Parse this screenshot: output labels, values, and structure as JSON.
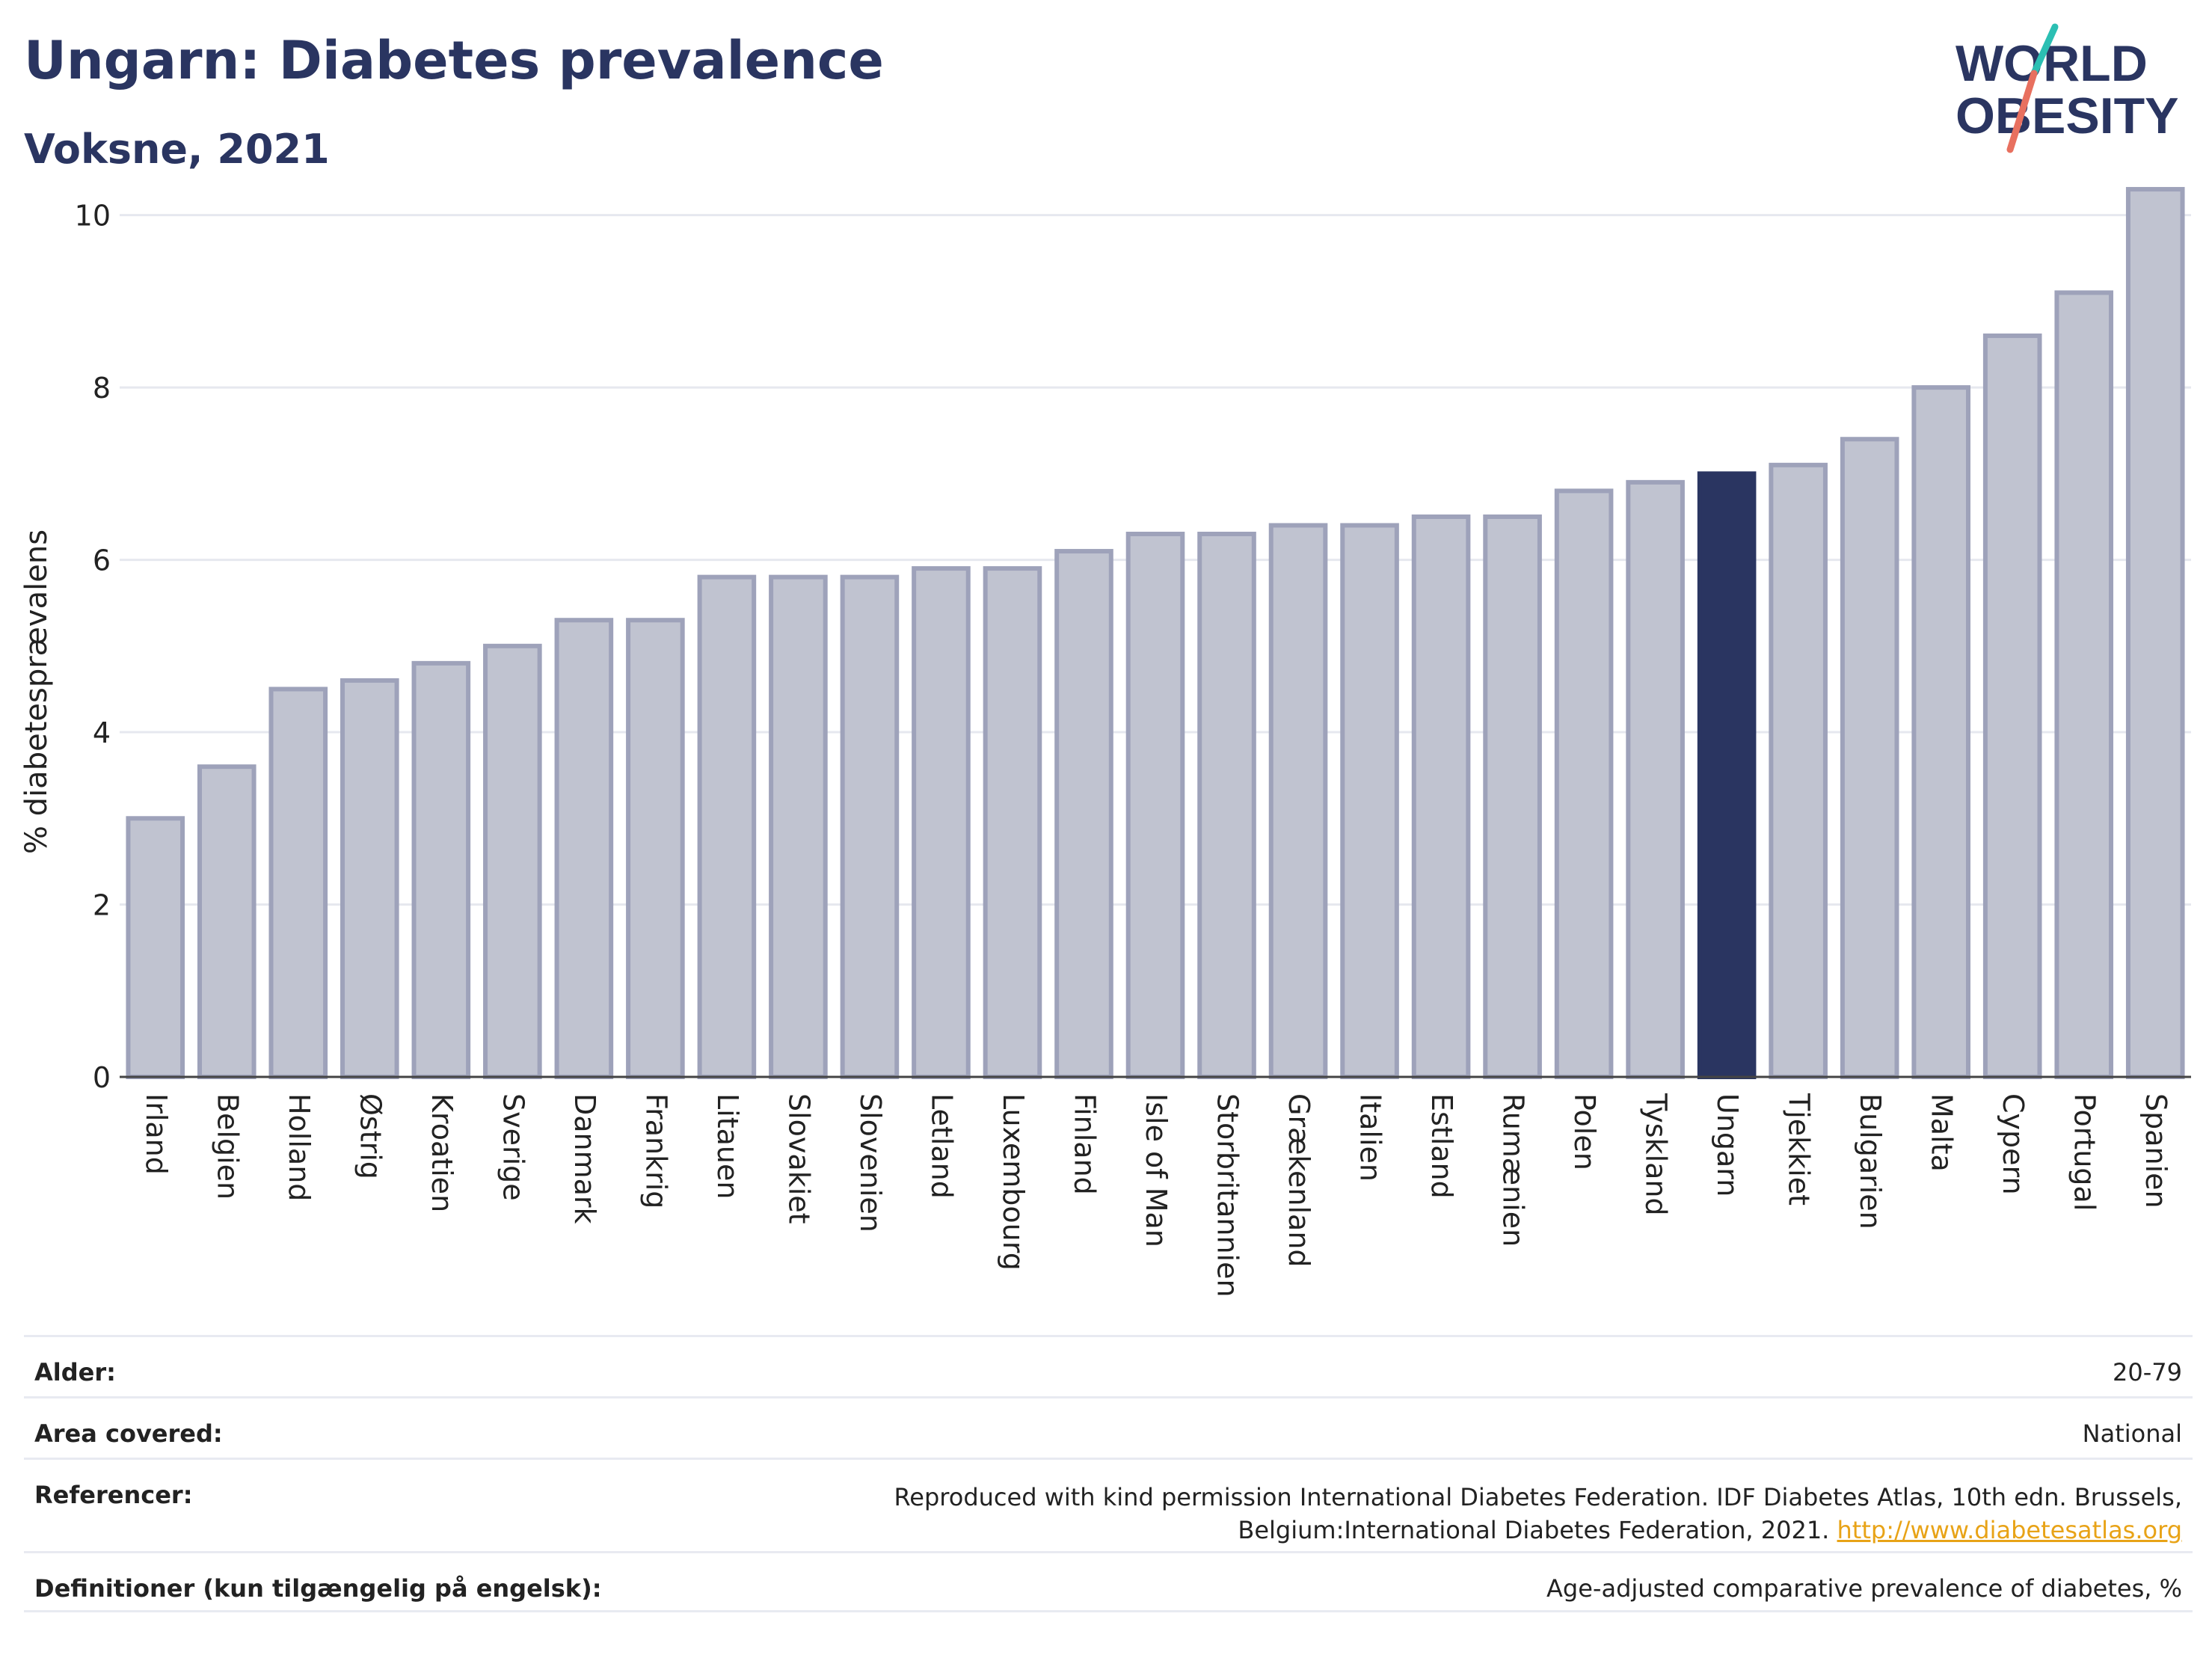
{
  "header": {
    "title": "Ungarn: Diabetes prevalence",
    "subtitle": "Voksne, 2021"
  },
  "logo": {
    "line1": "WORLD",
    "line2": "OBESITY",
    "accent_teal": "#2bbfb3",
    "accent_coral": "#e8705f",
    "text_color": "#2a3561"
  },
  "chart_data": {
    "type": "bar",
    "ylabel": "% diabetesprævalens",
    "xlabel": "",
    "ylim": [
      0,
      10.5
    ],
    "yticks": [
      0,
      2,
      4,
      6,
      8,
      10
    ],
    "grid": true,
    "highlight": "Ungarn",
    "colors": {
      "bar": "#c0c3d0",
      "bar_border": "#9ea2ba",
      "highlight": "#2a3561"
    },
    "categories": [
      "Irland",
      "Belgien",
      "Holland",
      "Østrig",
      "Kroatien",
      "Sverige",
      "Danmark",
      "Frankrig",
      "Litauen",
      "Slovakiet",
      "Slovenien",
      "Letland",
      "Luxembourg",
      "Finland",
      "Isle of Man",
      "Storbritannien",
      "Grækenland",
      "Italien",
      "Estland",
      "Rumænien",
      "Polen",
      "Tyskland",
      "Ungarn",
      "Tjekkiet",
      "Bulgarien",
      "Malta",
      "Cypern",
      "Portugal",
      "Spanien"
    ],
    "values": [
      3.0,
      3.6,
      4.5,
      4.6,
      4.8,
      5.0,
      5.3,
      5.3,
      5.8,
      5.8,
      5.8,
      5.9,
      5.9,
      6.1,
      6.3,
      6.3,
      6.4,
      6.4,
      6.5,
      6.5,
      6.8,
      6.9,
      7.0,
      7.1,
      7.4,
      8.0,
      8.6,
      9.1,
      10.3
    ]
  },
  "meta": {
    "age_label": "Alder:",
    "age_value": "20-79",
    "area_label": "Area covered:",
    "area_value": "National",
    "ref_label": "Referencer:",
    "ref_text": "Reproduced with kind permission International Diabetes Federation.  IDF Diabetes Atlas, 10th edn. Brussels, Belgium:International Diabetes Federation, 2021. ",
    "ref_link": "http://www.diabetesatlas.org",
    "def_label": "Definitioner (kun tilgængelig på engelsk):",
    "def_value": "Age-adjusted comparative prevalence of diabetes, %"
  }
}
